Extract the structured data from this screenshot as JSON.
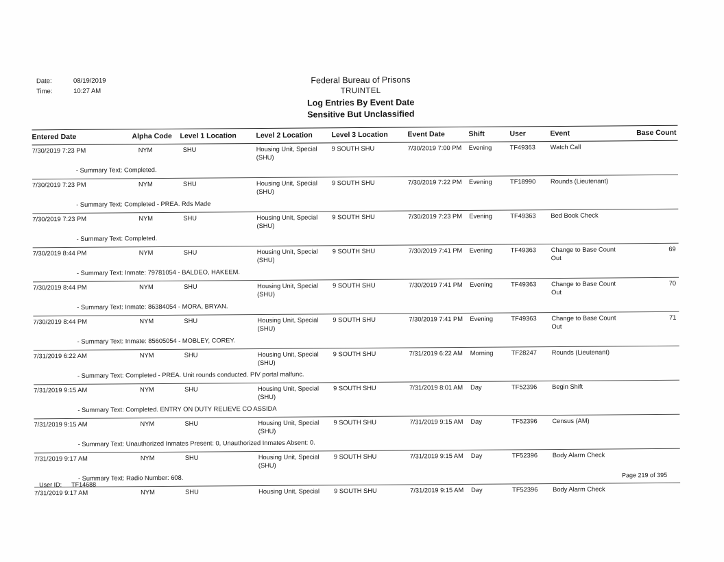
{
  "page": {
    "meta": {
      "date_label": "Date:",
      "date_value": "08/19/2019",
      "time_label": "Time:",
      "time_value": "10:27 AM"
    },
    "title_lines": [
      "Federal Bureau of Prisons",
      "TRUINTEL",
      "Log Entries By Event Date",
      "Sensitive But Unclassified"
    ],
    "footer": {
      "user_id_label": "User ID:",
      "user_id_value": "TF14688",
      "page_text": "Page 219 of 395"
    }
  },
  "table": {
    "columns": [
      "Entered Date",
      "Alpha Code",
      "Level 1 Location",
      "Level 2 Location",
      "Level 3 Location",
      "Event Date",
      "Shift",
      "User",
      "Event",
      "Base Count"
    ],
    "rows": [
      {
        "entered_date": "7/30/2019 7:23 PM",
        "alpha_code": "NYM",
        "level1": "SHU",
        "level2": "Housing Unit, Special (SHU)",
        "level3": "9 SOUTH SHU",
        "event_date": "7/30/2019 7:00 PM",
        "shift": "Evening",
        "user": "TF49363",
        "event": "Watch Call",
        "base_count": "",
        "summary": "- Summary Text: Completed."
      },
      {
        "entered_date": "7/30/2019 7:23 PM",
        "alpha_code": "NYM",
        "level1": "SHU",
        "level2": "Housing Unit, Special (SHU)",
        "level3": "9 SOUTH SHU",
        "event_date": "7/30/2019 7:22 PM",
        "shift": "Evening",
        "user": "TF18990",
        "event": "Rounds (Lieutenant)",
        "base_count": "",
        "summary": "- Summary Text: Completed - PREA.  Rds Made"
      },
      {
        "entered_date": "7/30/2019 7:23 PM",
        "alpha_code": "NYM",
        "level1": "SHU",
        "level2": "Housing Unit, Special (SHU)",
        "level3": "9 SOUTH SHU",
        "event_date": "7/30/2019 7:23 PM",
        "shift": "Evening",
        "user": "TF49363",
        "event": "Bed Book Check",
        "base_count": "",
        "summary": "- Summary Text: Completed."
      },
      {
        "entered_date": "7/30/2019 8:44 PM",
        "alpha_code": "NYM",
        "level1": "SHU",
        "level2": "Housing Unit, Special (SHU)",
        "level3": "9 SOUTH SHU",
        "event_date": "7/30/2019 7:41 PM",
        "shift": "Evening",
        "user": "TF49363",
        "event": "Change to Base Count Out",
        "base_count": "69",
        "summary": "- Summary Text: Inmate: 79781054 - BALDEO, HAKEEM."
      },
      {
        "entered_date": "7/30/2019 8:44 PM",
        "alpha_code": "NYM",
        "level1": "SHU",
        "level2": "Housing Unit, Special (SHU)",
        "level3": "9 SOUTH SHU",
        "event_date": "7/30/2019 7:41 PM",
        "shift": "Evening",
        "user": "TF49363",
        "event": "Change to Base Count Out",
        "base_count": "70",
        "summary": "- Summary Text: Inmate: 86384054 - MORA, BRYAN."
      },
      {
        "entered_date": "7/30/2019 8:44 PM",
        "alpha_code": "NYM",
        "level1": "SHU",
        "level2": "Housing Unit, Special (SHU)",
        "level3": "9 SOUTH SHU",
        "event_date": "7/30/2019 7:41 PM",
        "shift": "Evening",
        "user": "TF49363",
        "event": "Change to Base Count Out",
        "base_count": "71",
        "summary": "- Summary Text: Inmate: 85605054 - MOBLEY, COREY."
      },
      {
        "entered_date": "7/31/2019 6:22 AM",
        "alpha_code": "NYM",
        "level1": "SHU",
        "level2": "Housing Unit, Special (SHU)",
        "level3": "9 SOUTH SHU",
        "event_date": "7/31/2019 6:22 AM",
        "shift": "Morning",
        "user": "TF28247",
        "event": "Rounds (Lieutenant)",
        "base_count": "",
        "summary": "- Summary Text: Completed - PREA.  Unit rounds conducted. PIV portal malfunc."
      },
      {
        "entered_date": "7/31/2019 9:15 AM",
        "alpha_code": "NYM",
        "level1": "SHU",
        "level2": "Housing Unit, Special (SHU)",
        "level3": "9 SOUTH SHU",
        "event_date": "7/31/2019 8:01 AM",
        "shift": "Day",
        "user": "TF52396",
        "event": "Begin Shift",
        "base_count": "",
        "summary": "- Summary Text: Completed.  ENTRY ON DUTY RELIEVE CO ASSIDA"
      },
      {
        "entered_date": "7/31/2019 9:15 AM",
        "alpha_code": "NYM",
        "level1": "SHU",
        "level2": "Housing Unit, Special (SHU)",
        "level3": "9 SOUTH SHU",
        "event_date": "7/31/2019 9:15 AM",
        "shift": "Day",
        "user": "TF52396",
        "event": "Census (AM)",
        "base_count": "",
        "summary": "- Summary Text: Unauthorized Inmates Present: 0, Unauthorized Inmates Absent: 0."
      },
      {
        "entered_date": "7/31/2019 9:17 AM",
        "alpha_code": "NYM",
        "level1": "SHU",
        "level2": "Housing Unit, Special (SHU)",
        "level3": "9 SOUTH SHU",
        "event_date": "7/31/2019 9:15 AM",
        "shift": "Day",
        "user": "TF52396",
        "event": "Body Alarm Check",
        "base_count": "",
        "summary": "- Summary Text: Radio Number: 608."
      },
      {
        "entered_date": "7/31/2019 9:17 AM",
        "alpha_code": "NYM",
        "level1": "SHU",
        "level2": "Housing Unit, Special",
        "level3": "9 SOUTH SHU",
        "event_date": "7/31/2019 9:15 AM",
        "shift": "Day",
        "user": "TF52396",
        "event": "Body Alarm Check",
        "base_count": "",
        "summary": null
      }
    ]
  }
}
